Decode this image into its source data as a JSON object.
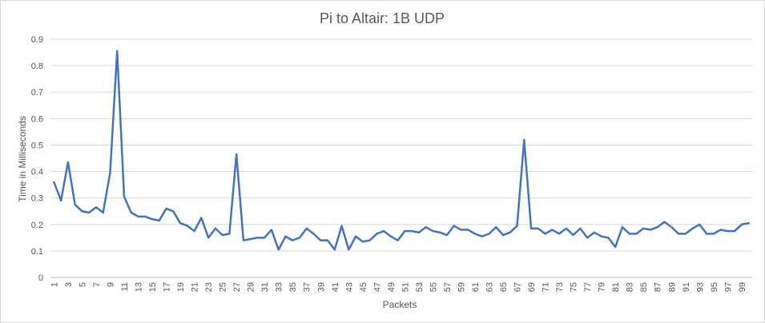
{
  "chart_data": {
    "type": "line",
    "title": "Pi to Altair: 1B UDP",
    "xlabel": "Packets",
    "ylabel": "Time in Milliseconds",
    "ylim": [
      0,
      0.9
    ],
    "yticks": [
      "0",
      "0.1",
      "0.2",
      "0.3",
      "0.4",
      "0.5",
      "0.6",
      "0.7",
      "0.8",
      "0.9"
    ],
    "grid": true,
    "legend": "none",
    "series_color": "#4472c4",
    "x": [
      1,
      2,
      3,
      4,
      5,
      6,
      7,
      8,
      9,
      10,
      11,
      12,
      13,
      14,
      15,
      16,
      17,
      18,
      19,
      20,
      21,
      22,
      23,
      24,
      25,
      26,
      27,
      28,
      29,
      30,
      31,
      32,
      33,
      34,
      35,
      36,
      37,
      38,
      39,
      40,
      41,
      42,
      43,
      44,
      45,
      46,
      47,
      48,
      49,
      50,
      51,
      52,
      53,
      54,
      55,
      56,
      57,
      58,
      59,
      60,
      61,
      62,
      63,
      64,
      65,
      66,
      67,
      68,
      69,
      70,
      71,
      72,
      73,
      74,
      75,
      76,
      77,
      78,
      79,
      80,
      81,
      82,
      83,
      84,
      85,
      86,
      87,
      88,
      89,
      90,
      91,
      92,
      93,
      94,
      95,
      96,
      97,
      98,
      99,
      100
    ],
    "xtick_labels": [
      "1",
      "3",
      "5",
      "7",
      "9",
      "11",
      "13",
      "15",
      "17",
      "19",
      "21",
      "23",
      "25",
      "27",
      "29",
      "31",
      "33",
      "35",
      "37",
      "39",
      "41",
      "43",
      "45",
      "47",
      "49",
      "51",
      "53",
      "55",
      "57",
      "59",
      "61",
      "63",
      "65",
      "67",
      "69",
      "71",
      "73",
      "75",
      "77",
      "79",
      "81",
      "83",
      "85",
      "87",
      "89",
      "91",
      "93",
      "95",
      "97",
      "99"
    ],
    "series": [
      {
        "values": [
          0.36,
          0.29,
          0.435,
          0.275,
          0.25,
          0.245,
          0.265,
          0.245,
          0.395,
          0.855,
          0.305,
          0.245,
          0.23,
          0.23,
          0.22,
          0.215,
          0.26,
          0.25,
          0.205,
          0.195,
          0.175,
          0.225,
          0.15,
          0.185,
          0.16,
          0.165,
          0.465,
          0.14,
          0.145,
          0.15,
          0.15,
          0.18,
          0.105,
          0.155,
          0.14,
          0.15,
          0.185,
          0.165,
          0.14,
          0.14,
          0.105,
          0.195,
          0.105,
          0.155,
          0.135,
          0.14,
          0.165,
          0.175,
          0.155,
          0.14,
          0.175,
          0.175,
          0.17,
          0.19,
          0.175,
          0.17,
          0.16,
          0.195,
          0.18,
          0.18,
          0.165,
          0.155,
          0.165,
          0.19,
          0.16,
          0.17,
          0.195,
          0.52,
          0.185,
          0.185,
          0.165,
          0.18,
          0.165,
          0.185,
          0.16,
          0.185,
          0.15,
          0.17,
          0.155,
          0.15,
          0.115,
          0.19,
          0.165,
          0.165,
          0.185,
          0.18,
          0.19,
          0.21,
          0.19,
          0.165,
          0.165,
          0.185,
          0.2,
          0.165,
          0.165,
          0.18,
          0.175,
          0.175,
          0.2,
          0.205
        ]
      }
    ]
  }
}
